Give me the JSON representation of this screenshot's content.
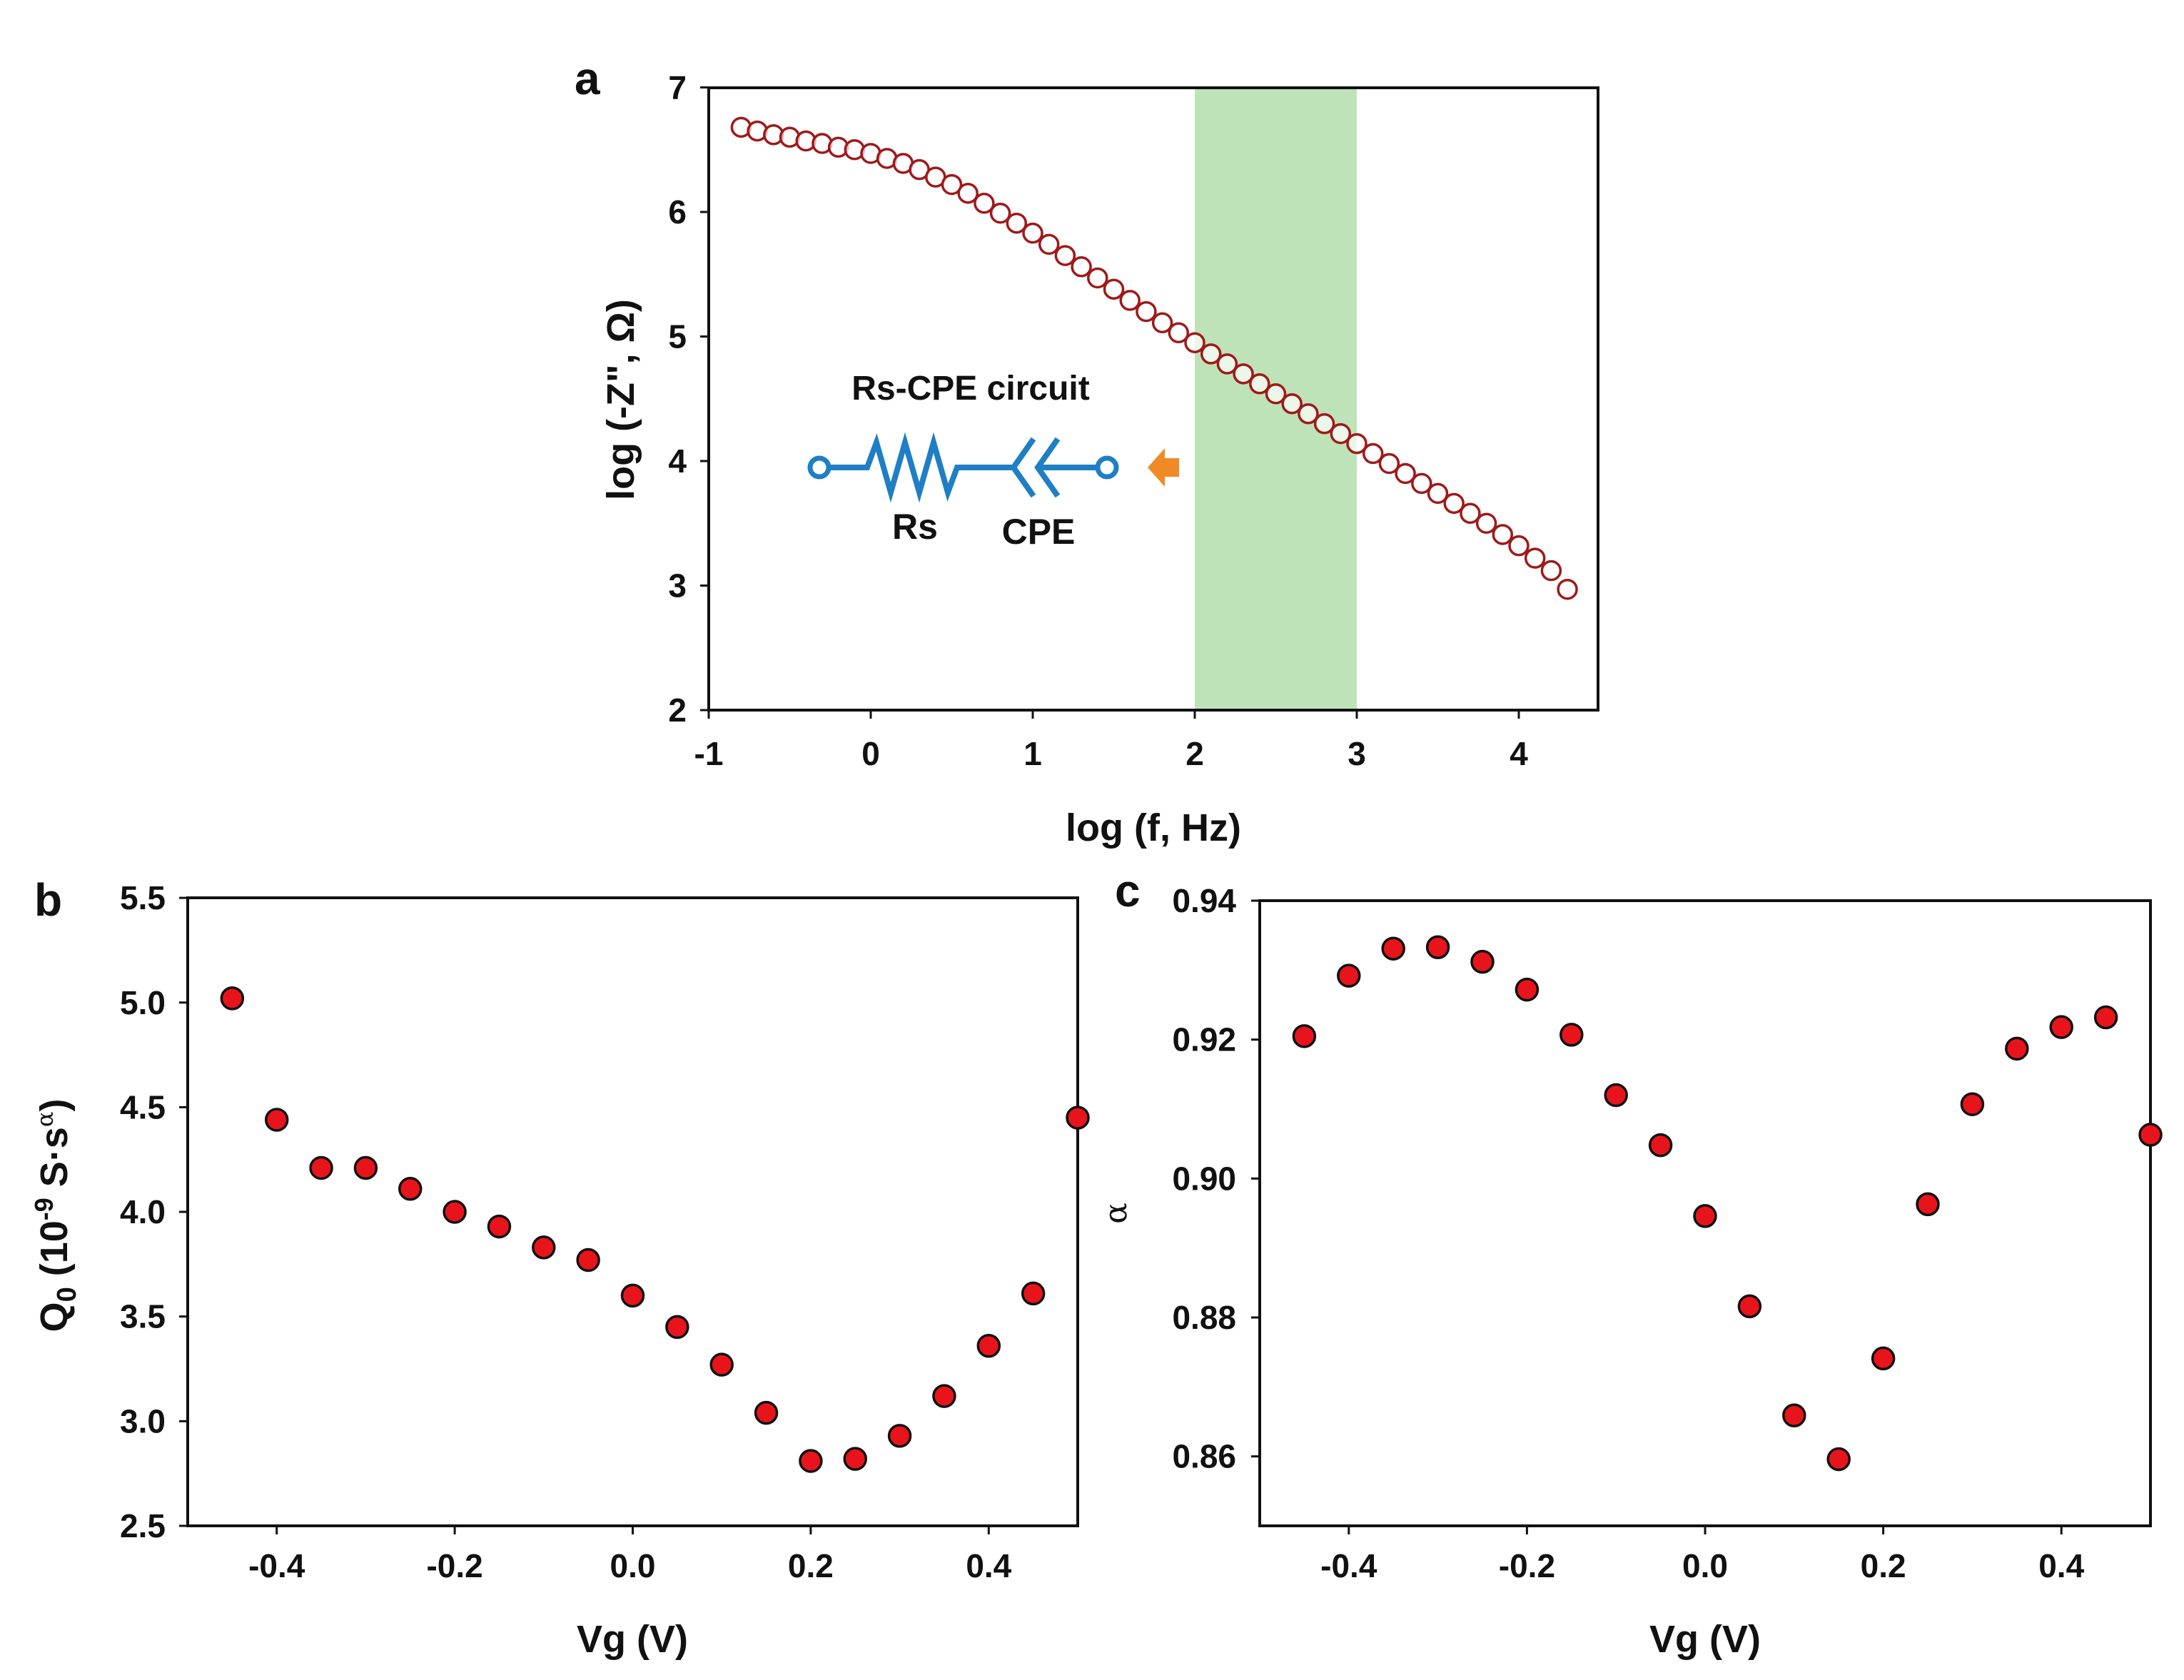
{
  "colors": {
    "hollow_marker": "#9e1a1a",
    "filled_marker": "#e8141b",
    "highlight_band": "#bfe3b8",
    "circuit_wire": "#1f7fc4",
    "circuit_label": "#e8721c",
    "arrow": "#f08a24"
  },
  "chart_data": [
    {
      "panel": "a",
      "type": "scatter",
      "xlabel": "log (f, Hz)",
      "ylabel": "log (-Z\", Ω)",
      "xlim": [
        -1,
        4.5
      ],
      "ylim": [
        2,
        7
      ],
      "xticks": [
        -1,
        0,
        1,
        2,
        3,
        4
      ],
      "yticks": [
        2,
        3,
        4,
        5,
        6,
        7
      ],
      "highlight_band": [
        2,
        3
      ],
      "inset": {
        "title": "Rs-CPE circuit",
        "labels": [
          "Rs",
          "CPE"
        ]
      },
      "series": [
        {
          "name": "log(-Z\")",
          "marker": "hollow circle",
          "x": [
            -0.8,
            -0.7,
            -0.6,
            -0.5,
            -0.4,
            -0.3,
            -0.2,
            -0.1,
            0.0,
            0.1,
            0.2,
            0.3,
            0.4,
            0.5,
            0.6,
            0.7,
            0.8,
            0.9,
            1.0,
            1.1,
            1.2,
            1.3,
            1.4,
            1.5,
            1.6,
            1.7,
            1.8,
            1.9,
            2.0,
            2.1,
            2.2,
            2.3,
            2.4,
            2.5,
            2.6,
            2.7,
            2.8,
            2.9,
            3.0,
            3.1,
            3.2,
            3.3,
            3.4,
            3.5,
            3.6,
            3.7,
            3.8,
            3.9,
            4.0,
            4.1,
            4.2,
            4.3
          ],
          "y": [
            6.68,
            6.65,
            6.62,
            6.6,
            6.57,
            6.55,
            6.52,
            6.5,
            6.47,
            6.43,
            6.39,
            6.34,
            6.28,
            6.22,
            6.15,
            6.07,
            5.99,
            5.91,
            5.83,
            5.74,
            5.65,
            5.56,
            5.47,
            5.38,
            5.29,
            5.2,
            5.11,
            5.03,
            4.95,
            4.86,
            4.78,
            4.7,
            4.62,
            4.54,
            4.46,
            4.38,
            4.3,
            4.22,
            4.14,
            4.06,
            3.98,
            3.9,
            3.82,
            3.74,
            3.66,
            3.58,
            3.5,
            3.41,
            3.32,
            3.22,
            3.12,
            2.97
          ]
        }
      ]
    },
    {
      "panel": "b",
      "type": "scatter",
      "xlabel": "Vg (V)",
      "ylabel": "Q0 (10-9 S·sα)",
      "ylabel_parts": {
        "main": "Q",
        "sub": "0",
        "mid": " (10",
        "sup": "-9",
        "unit": " S·s",
        "alpha": "α",
        "close": ")"
      },
      "xlim": [
        -0.5,
        0.5
      ],
      "ylim": [
        2.5,
        5.5
      ],
      "xticks": [
        "-0.4",
        "-0.2",
        "0.0",
        "0.2",
        "0.4"
      ],
      "yticks": [
        "2.5",
        "3.0",
        "3.5",
        "4.0",
        "4.5",
        "5.0",
        "5.5"
      ],
      "series": [
        {
          "name": "Q0",
          "marker": "filled circle",
          "x": [
            -0.45,
            -0.4,
            -0.35,
            -0.3,
            -0.25,
            -0.2,
            -0.15,
            -0.1,
            -0.05,
            0.0,
            0.05,
            0.1,
            0.15,
            0.2,
            0.25,
            0.3,
            0.35,
            0.4,
            0.45,
            0.5
          ],
          "y": [
            5.02,
            4.44,
            4.21,
            4.21,
            4.11,
            4.0,
            3.93,
            3.83,
            3.77,
            3.6,
            3.45,
            3.27,
            3.04,
            2.81,
            2.82,
            2.93,
            3.12,
            3.36,
            3.61,
            4.45
          ]
        }
      ]
    },
    {
      "panel": "c",
      "type": "scatter",
      "xlabel": "Vg (V)",
      "ylabel": "α",
      "xlim": [
        -0.5,
        0.5
      ],
      "ylim": [
        0.85,
        0.94
      ],
      "xticks": [
        "-0.4",
        "-0.2",
        "0.0",
        "0.2",
        "0.4"
      ],
      "yticks": [
        "0.86",
        "0.88",
        "0.90",
        "0.92",
        "0.94"
      ],
      "series": [
        {
          "name": "alpha",
          "marker": "filled circle",
          "x": [
            -0.45,
            -0.4,
            -0.35,
            -0.3,
            -0.25,
            -0.2,
            -0.15,
            -0.1,
            -0.05,
            0.0,
            0.05,
            0.1,
            0.15,
            0.2,
            0.25,
            0.3,
            0.35,
            0.4,
            0.45,
            0.5
          ],
          "y": [
            0.9205,
            0.9292,
            0.9331,
            0.9333,
            0.9312,
            0.9272,
            0.9207,
            0.912,
            0.9048,
            0.8946,
            0.8816,
            0.8659,
            0.8596,
            0.8741,
            0.8963,
            0.9107,
            0.9187,
            0.9218,
            0.9232,
            0.9063
          ]
        }
      ]
    }
  ]
}
